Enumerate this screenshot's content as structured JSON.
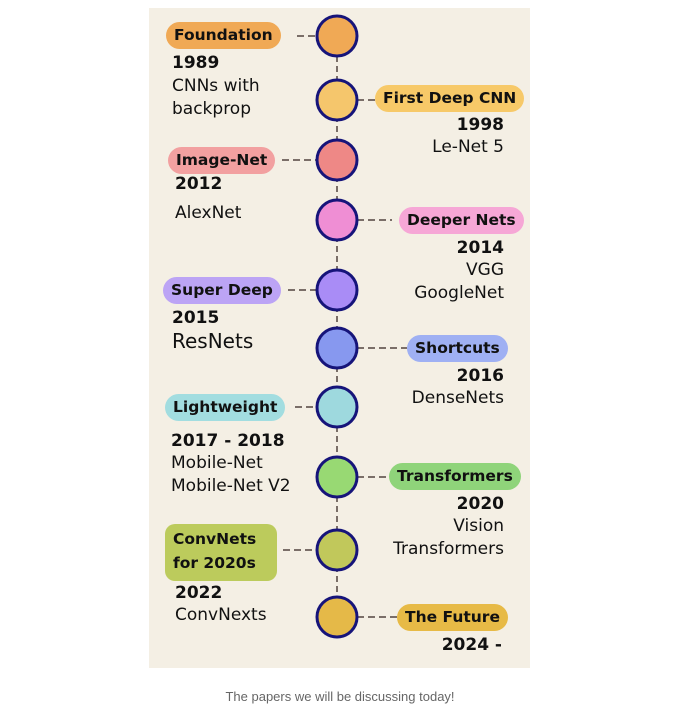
{
  "colors": {
    "spine": "#7a6e68",
    "ring": "#16147a"
  },
  "milestones": [
    {
      "label": "Foundation",
      "year": "1989",
      "desc": "CNNs with\nbackprop",
      "color": "#f0a955",
      "dot": "#f0a955"
    },
    {
      "label": "First Deep CNN",
      "year": "1998",
      "desc": "Le-Net 5",
      "color": "#f7c968",
      "dot": "#f5c66c"
    },
    {
      "label": "Image-Net",
      "year": "2012",
      "desc": "AlexNet",
      "color": "#f2a0a0",
      "dot": "#ee8886"
    },
    {
      "label": "Deeper Nets",
      "year": "2014",
      "desc": "VGG\nGoogleNet",
      "color": "#f6a7d6",
      "dot": "#ef8ed4"
    },
    {
      "label": "Super Deep",
      "year": "2015",
      "desc": "ResNets",
      "color": "#bca4f5",
      "dot": "#a98cf6"
    },
    {
      "label": "Shortcuts",
      "year": "2016",
      "desc": "DenseNets",
      "color": "#9fb0f3",
      "dot": "#8798ef"
    },
    {
      "label": "Lightweight",
      "year": "2017 - 2018",
      "desc": "Mobile-Net\nMobile-Net V2",
      "color": "#a2dde0",
      "dot": "#9ed9de"
    },
    {
      "label": "Transformers",
      "year": "2020",
      "desc": "Vision\nTransformers",
      "color": "#8fd47a",
      "dot": "#98d973"
    },
    {
      "label": "ConvNets for 2020s",
      "year": "2022",
      "desc": "ConvNexts",
      "color": "#bccb5c",
      "dot": "#c1c85b"
    },
    {
      "label": "The Future",
      "year": "2024 -",
      "desc": "",
      "color": "#e7ba46",
      "dot": "#e5b948"
    }
  ],
  "caption": "The papers we will be discussing today!"
}
